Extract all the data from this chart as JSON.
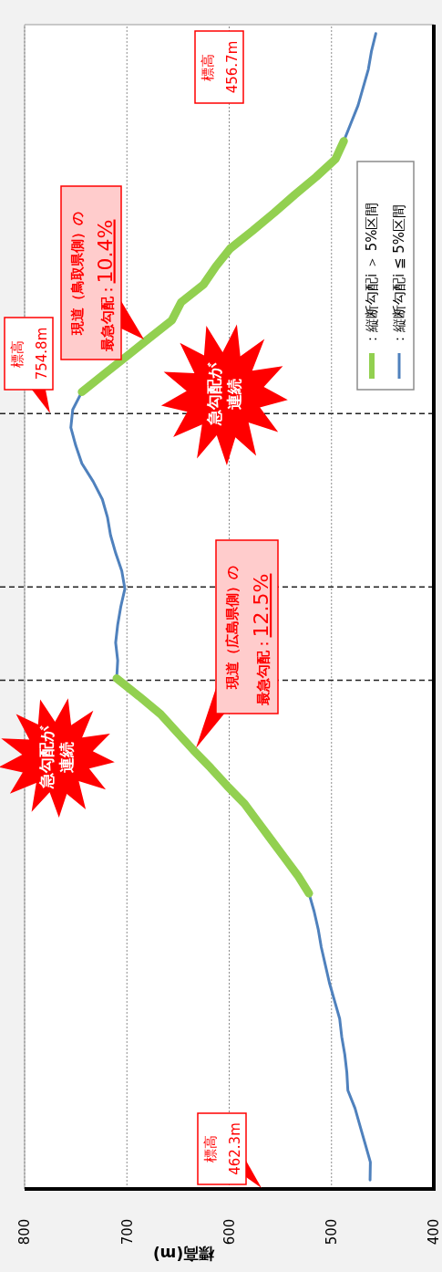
{
  "chart_data": {
    "type": "line",
    "orientation": "horizontal",
    "xlabel": "標高(m)",
    "categories": [
      null,
      null,
      null,
      null,
      null,
      null,
      null,
      null,
      null,
      null,
      null,
      null,
      null,
      null,
      null,
      null,
      null,
      null,
      null,
      null,
      null,
      null,
      null,
      null,
      null,
      null,
      null,
      null,
      null,
      null,
      null,
      null,
      null,
      null,
      null,
      null,
      null,
      null,
      null,
      null,
      null,
      null,
      null,
      null,
      null,
      null,
      null,
      null,
      null,
      null,
      null,
      null,
      null,
      null,
      null,
      null,
      null,
      null,
      null,
      null,
      null,
      null,
      null,
      null,
      null
    ],
    "xlim": [
      800,
      400
    ],
    "xticks": [
      800,
      700,
      600,
      500,
      400
    ],
    "grid": true,
    "legend": "top right",
    "series": [
      {
        "name": "：縦断勾配i ≦ 5%区間",
        "color": "#4f81bd",
        "values": [
          456.7,
          461,
          464,
          469,
          474,
          481,
          488,
          null,
          null,
          null,
          null,
          null,
          null,
          null,
          null,
          null,
          null,
          null,
          null,
          null,
          744,
          753,
          754.8,
          750,
          744,
          733,
          724,
          719,
          716,
          711,
          705,
          702,
          706,
          709,
          711,
          709,
          710,
          null,
          null,
          null,
          null,
          null,
          null,
          null,
          null,
          null,
          null,
          null,
          522,
          517,
          513,
          510,
          506,
          502,
          497,
          492,
          490,
          487,
          485,
          484,
          477,
          472,
          467,
          462,
          462.3
        ]
      },
      {
        "name": "：縦断勾配i ＞ 5%区間",
        "color": "#92d050",
        "values": [
          null,
          null,
          null,
          null,
          null,
          null,
          488,
          496,
          515,
          536,
          556,
          577,
          599,
          613,
          625,
          647,
          656,
          678,
          700,
          722,
          744,
          null,
          null,
          null,
          null,
          null,
          null,
          null,
          null,
          null,
          null,
          null,
          null,
          null,
          null,
          null,
          710,
          688,
          667,
          651,
          635,
          618,
          602,
          585,
          572,
          559,
          546,
          533,
          522,
          null,
          null,
          null,
          null,
          null,
          null,
          null,
          null,
          null,
          null,
          null,
          null,
          null,
          null,
          null,
          null
        ]
      }
    ],
    "annotations": [
      "標高\n462.3m",
      "標高\n754.8m",
      "標高\n456.7m",
      "現道（鳥取県側）の最急勾配：10.4%",
      "現道（広島県側）の最急勾配：12.5%",
      "急勾配が連続",
      "急勾配が連続"
    ]
  }
}
